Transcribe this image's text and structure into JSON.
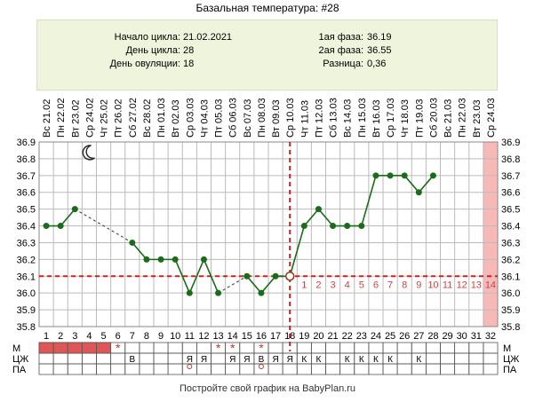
{
  "title": "Базальная температура: #28",
  "info": {
    "cycle_start_label": "Начало цикла:",
    "cycle_start_value": "21.02.2021",
    "cycle_day_label": "День цикла:",
    "cycle_day_value": "28",
    "ovulation_day_label": "День овуляции:",
    "ovulation_day_value": "18",
    "phase1_label": "1ая фаза:",
    "phase1_value": "36.19",
    "phase2_label": "2ая фаза:",
    "phase2_value": "36.55",
    "diff_label": "Разница:",
    "diff_value": "0,36"
  },
  "footer": "Постройте свой график на BabyPlan.ru",
  "row_labels": [
    "М",
    "ЦЖ",
    "ПА"
  ],
  "moon_icon": "crescent-moon-icon",
  "colors": {
    "line": "#1a6b1a",
    "grid": "#bbbbbb",
    "coverline": "#cc2222",
    "menses": "#e05555",
    "highlight_day": "#f7b8b8",
    "luteal_numbers": "#cc4444",
    "info_bg": "#eef5dc"
  },
  "chart_data": {
    "type": "line",
    "title": "Базальная температура: #28",
    "x_day_numbers": [
      1,
      2,
      3,
      4,
      5,
      6,
      7,
      8,
      9,
      10,
      11,
      12,
      13,
      14,
      15,
      16,
      17,
      18,
      19,
      20,
      21,
      22,
      23,
      24,
      25,
      26,
      27,
      28,
      29,
      30,
      31,
      32
    ],
    "x_dates": [
      "Вс 21.02",
      "Пн 22.02",
      "Вт 23.02",
      "Ср 24.02",
      "Чт 25.02",
      "Пт 26.02",
      "Сб 27.02",
      "Вс 28.02",
      "Пн 01.03",
      "Вт 02.03",
      "Ср 03.03",
      "Чт 04.03",
      "Пт 05.03",
      "Сб 06.03",
      "Вс 07.03",
      "Пн 08.03",
      "Вт 09.03",
      "Ср 10.03",
      "Чт 11.03",
      "Пт 12.03",
      "Сб 13.03",
      "Вс 14.03",
      "Пн 15.03",
      "Вт 16.03",
      "Ср 17.03",
      "Чт 18.03",
      "Пт 19.03",
      "Сб 20.03",
      "Вс 21.03",
      "Пн 22.03",
      "Вт 23.03",
      "Ср 24.03"
    ],
    "ylim": [
      35.8,
      36.9
    ],
    "y_ticks": [
      "35.8",
      "35.9",
      "36.0",
      "36.1",
      "36.2",
      "36.3",
      "36.4",
      "36.5",
      "36.6",
      "36.7",
      "36.8",
      "36.9"
    ],
    "series": [
      {
        "values": [
          36.4,
          36.4,
          36.5,
          null,
          null,
          null,
          36.3,
          36.2,
          36.2,
          36.2,
          36.0,
          36.2,
          36.0,
          null,
          36.1,
          36.0,
          36.1,
          36.1,
          36.4,
          36.5,
          36.4,
          36.4,
          36.4,
          36.7,
          36.7,
          36.7,
          36.6,
          36.7,
          null,
          null,
          null,
          null
        ]
      }
    ],
    "coverline": 36.1,
    "ovulation_day": 18,
    "luteal_day_numbers": [
      "1",
      "2",
      "3",
      "4",
      "5",
      "6",
      "7",
      "8",
      "9",
      "10",
      "11",
      "12",
      "13",
      "14"
    ],
    "highlight_day": 32,
    "menses_days": [
      1,
      2,
      3,
      4,
      5
    ],
    "stars_days": [
      6,
      13,
      14,
      16
    ],
    "cm_marks": {
      "7": "В",
      "11": "Я",
      "12": "Я",
      "14": "Я",
      "15": "Я",
      "16": "В",
      "17": "Я",
      "18": "Я",
      "19": "К",
      "20": "К",
      "22": "К",
      "23": "К",
      "24": "К",
      "25": "К",
      "27": "К"
    },
    "circle_days": [
      11,
      16
    ]
  }
}
